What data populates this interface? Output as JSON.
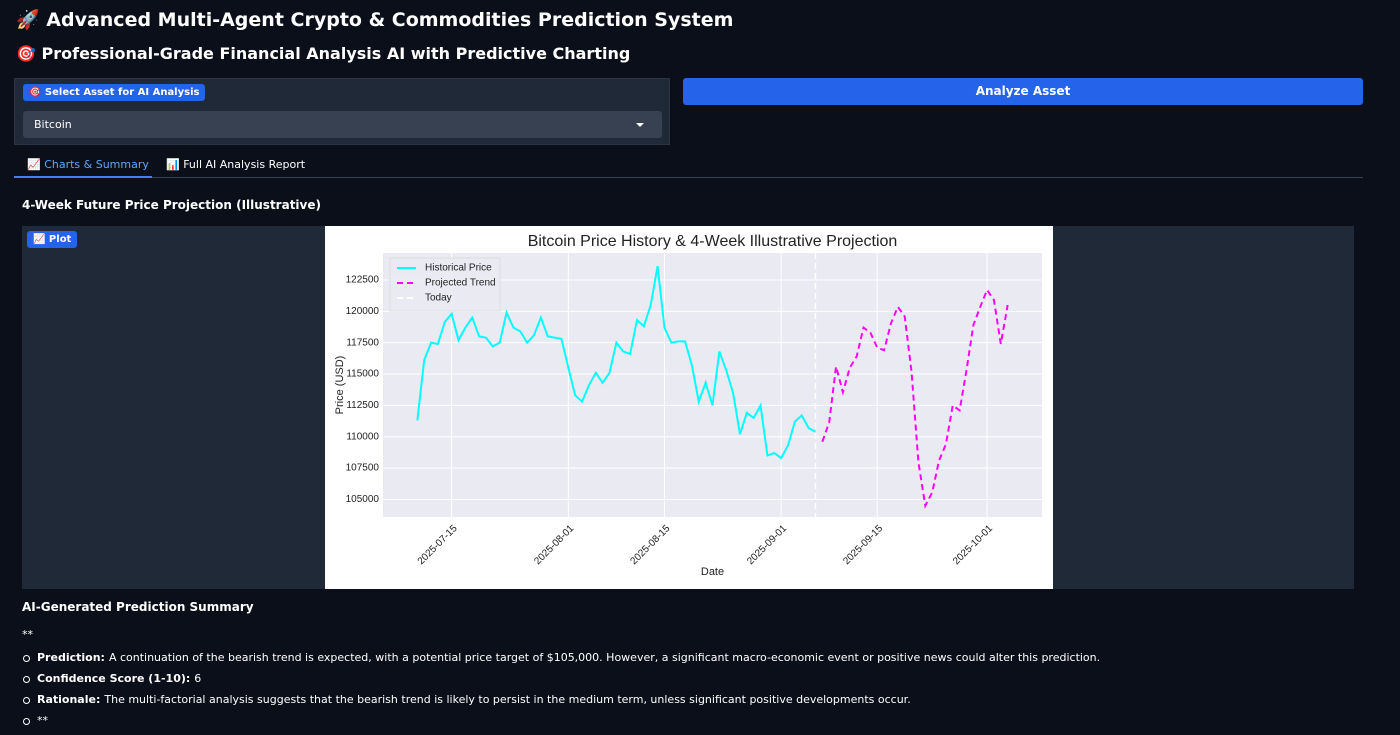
{
  "header": {
    "title": "🚀 Advanced Multi-Agent Crypto & Commodities Prediction System",
    "subtitle": "🎯 Professional-Grade Financial Analysis AI with Predictive Charting"
  },
  "asset_select": {
    "label": "🎯 Select Asset for AI Analysis",
    "value": "Bitcoin"
  },
  "analyze_button": "Analyze Asset",
  "tabs": [
    "📈 Charts & Summary",
    "📊 Full AI Analysis Report"
  ],
  "section_title": "4-Week Future Price Projection (Illustrative)",
  "plot_badge": "📈 Plot",
  "chart_data": {
    "type": "line",
    "title": "Bitcoin Price History & 4-Week Illustrative Projection",
    "xlabel": "Date",
    "ylabel": "Price (USD)",
    "x": [
      "2025-07-10",
      "2025-07-11",
      "2025-07-12",
      "2025-07-13",
      "2025-07-14",
      "2025-07-15",
      "2025-07-16",
      "2025-07-17",
      "2025-07-18",
      "2025-07-19",
      "2025-07-20",
      "2025-07-21",
      "2025-07-22",
      "2025-07-23",
      "2025-07-24",
      "2025-07-25",
      "2025-07-26",
      "2025-07-27",
      "2025-07-28",
      "2025-07-29",
      "2025-07-30",
      "2025-07-31",
      "2025-08-01",
      "2025-08-02",
      "2025-08-03",
      "2025-08-04",
      "2025-08-05",
      "2025-08-06",
      "2025-08-07",
      "2025-08-08",
      "2025-08-09",
      "2025-08-10",
      "2025-08-11",
      "2025-08-12",
      "2025-08-13",
      "2025-08-14",
      "2025-08-15",
      "2025-08-16",
      "2025-08-17",
      "2025-08-18",
      "2025-08-19",
      "2025-08-20",
      "2025-08-21",
      "2025-08-22",
      "2025-08-23",
      "2025-08-24",
      "2025-08-25",
      "2025-08-26",
      "2025-08-27",
      "2025-08-28",
      "2025-08-29",
      "2025-08-30",
      "2025-08-31",
      "2025-09-01",
      "2025-09-02",
      "2025-09-03",
      "2025-09-04",
      "2025-09-05",
      "2025-09-06",
      "2025-09-07",
      "2025-09-08",
      "2025-09-09",
      "2025-09-10",
      "2025-09-11",
      "2025-09-12",
      "2025-09-13",
      "2025-09-14",
      "2025-09-15",
      "2025-09-16",
      "2025-09-17",
      "2025-09-18",
      "2025-09-19",
      "2025-09-20",
      "2025-09-21",
      "2025-09-22",
      "2025-09-23",
      "2025-09-24",
      "2025-09-25",
      "2025-09-26",
      "2025-09-27",
      "2025-09-28",
      "2025-09-29",
      "2025-09-30",
      "2025-10-01",
      "2025-10-02",
      "2025-10-03",
      "2025-10-04"
    ],
    "series": [
      {
        "name": "Historical Price",
        "color": "#00ffff",
        "dash": false,
        "values": [
          111300,
          116100,
          117500,
          117400,
          119150,
          119800,
          117700,
          118700,
          119500,
          118000,
          117900,
          117200,
          117500,
          119900,
          118700,
          118400,
          117500,
          118100,
          119500,
          118000,
          117900,
          117800,
          115500,
          113300,
          112800,
          114100,
          115100,
          114300,
          115100,
          117500,
          116800,
          116600,
          119300,
          118800,
          120500,
          123600,
          118700,
          117500,
          117600,
          117600,
          115700,
          112800,
          114300,
          112500,
          116800,
          115300,
          113500,
          110200,
          111900,
          111500,
          112500,
          108500,
          108700,
          108300,
          109300,
          111200,
          111700,
          110700,
          110400,
          null,
          null,
          null,
          null,
          null,
          null,
          null,
          null,
          null,
          null,
          null,
          null,
          null,
          null,
          null,
          null,
          null,
          null,
          null,
          null,
          null,
          null,
          null,
          null,
          null,
          null,
          null,
          null
        ]
      },
      {
        "name": "Projected Trend",
        "color": "#ff00ff",
        "dash": true,
        "values": [
          null,
          null,
          null,
          null,
          null,
          null,
          null,
          null,
          null,
          null,
          null,
          null,
          null,
          null,
          null,
          null,
          null,
          null,
          null,
          null,
          null,
          null,
          null,
          null,
          null,
          null,
          null,
          null,
          null,
          null,
          null,
          null,
          null,
          null,
          null,
          null,
          null,
          null,
          null,
          null,
          null,
          null,
          null,
          null,
          null,
          null,
          null,
          null,
          null,
          null,
          null,
          null,
          null,
          null,
          null,
          null,
          null,
          null,
          null,
          109600,
          111150,
          115600,
          113550,
          115500,
          116400,
          118700,
          118300,
          117100,
          116900,
          119050,
          120350,
          119600,
          115150,
          107950,
          104500,
          105550,
          108100,
          109400,
          112500,
          112100,
          115300,
          118900,
          120350,
          121700,
          120900,
          117400,
          120500
        ]
      }
    ],
    "vline": {
      "label": "Today",
      "x": "2025-09-06",
      "color": "#ffffff"
    },
    "xlim": [
      "2025-07-05",
      "2025-10-09"
    ],
    "xticks": [
      "2025-07-15",
      "2025-08-01",
      "2025-08-15",
      "2025-09-01",
      "2025-09-15",
      "2025-10-01"
    ],
    "ylim": [
      103600,
      124650
    ],
    "yticks": [
      105000,
      107500,
      110000,
      112500,
      115000,
      117500,
      120000,
      122500
    ],
    "grid": true,
    "legend": "upper left"
  },
  "summary": {
    "title": "AI-Generated Prediction Summary",
    "lead": "**",
    "items": [
      {
        "label": "Prediction:",
        "text": "A continuation of the bearish trend is expected, with a potential price target of $105,000. However, a significant macro-economic event or positive news could alter this prediction."
      },
      {
        "label": "Confidence Score (1-10):",
        "text": "6"
      },
      {
        "label": "Rationale:",
        "text": "The multi-factorial analysis suggests that the bearish trend is likely to persist in the medium term, unless significant positive developments occur."
      },
      {
        "text": "**"
      }
    ]
  }
}
